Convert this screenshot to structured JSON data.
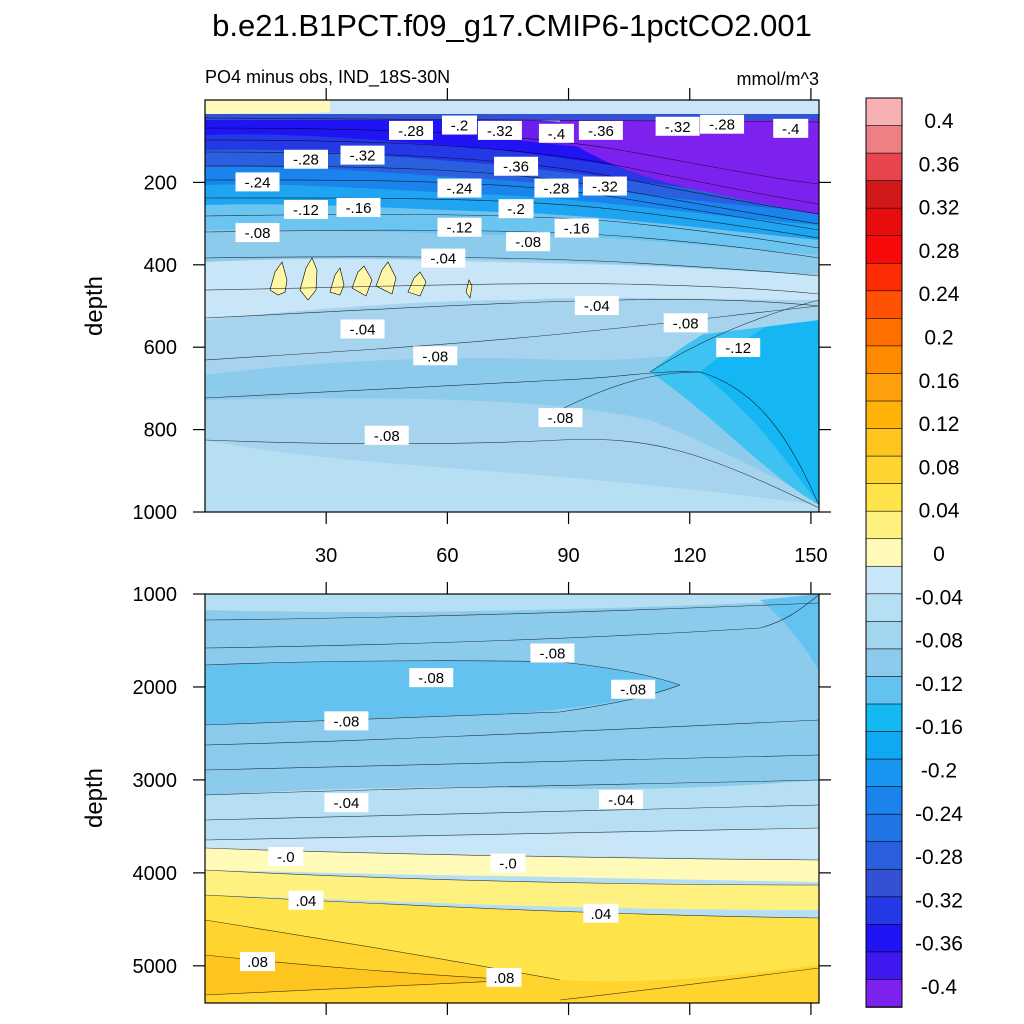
{
  "chart_data": {
    "type": "contour",
    "title": "b.e21.B1PCT.f09_g17.CMIP6-1pctCO2.001",
    "left_label": "PO4 minus obs, IND_18S-30N",
    "units": "mmol/m^3",
    "upper_panel": {
      "ylabel": "depth",
      "ylim": [
        0,
        1000
      ],
      "yticks": [
        "200",
        "400",
        "600",
        "800",
        "1000"
      ],
      "xlim": [
        0,
        152
      ],
      "xticks": [
        "30",
        "60",
        "90",
        "120",
        "150"
      ],
      "contour_labels": [
        {
          "text": "-.28",
          "x": 51,
          "y": 75
        },
        {
          "text": "-.2",
          "x": 63,
          "y": 62
        },
        {
          "text": "-.32",
          "x": 73,
          "y": 75
        },
        {
          "text": "-.4",
          "x": 87,
          "y": 82
        },
        {
          "text": "-.36",
          "x": 98,
          "y": 75
        },
        {
          "text": "-.32",
          "x": 117,
          "y": 65
        },
        {
          "text": "-.28",
          "x": 128,
          "y": 60
        },
        {
          "text": "-.4",
          "x": 145,
          "y": 70
        },
        {
          "text": "-.28",
          "x": 25,
          "y": 145
        },
        {
          "text": "-.32",
          "x": 39,
          "y": 135
        },
        {
          "text": "-.36",
          "x": 77,
          "y": 162
        },
        {
          "text": "-.24",
          "x": 13,
          "y": 200
        },
        {
          "text": "-.24",
          "x": 63,
          "y": 215
        },
        {
          "text": "-.28",
          "x": 87,
          "y": 215
        },
        {
          "text": "-.32",
          "x": 99,
          "y": 210
        },
        {
          "text": "-.12",
          "x": 25,
          "y": 267
        },
        {
          "text": "-.16",
          "x": 38,
          "y": 262
        },
        {
          "text": "-.2",
          "x": 77,
          "y": 265
        },
        {
          "text": "-.08",
          "x": 13,
          "y": 323
        },
        {
          "text": "-.12",
          "x": 63,
          "y": 310
        },
        {
          "text": "-.16",
          "x": 92,
          "y": 312
        },
        {
          "text": "-.08",
          "x": 80,
          "y": 345
        },
        {
          "text": "-.04",
          "x": 59,
          "y": 385
        },
        {
          "text": "-.04",
          "x": 97,
          "y": 500
        },
        {
          "text": "-.08",
          "x": 119,
          "y": 542
        },
        {
          "text": "-.04",
          "x": 39,
          "y": 557
        },
        {
          "text": "-.12",
          "x": 132,
          "y": 602
        },
        {
          "text": "-.08",
          "x": 57,
          "y": 622
        },
        {
          "text": "-.08",
          "x": 88,
          "y": 772
        },
        {
          "text": "-.08",
          "x": 45,
          "y": 815
        }
      ]
    },
    "lower_panel": {
      "ylabel": "depth",
      "ylim": [
        1000,
        5400
      ],
      "yticks": [
        "1000",
        "2000",
        "3000",
        "4000",
        "5000"
      ],
      "xlim": [
        0,
        152
      ],
      "contour_labels": [
        {
          "text": "-.08",
          "x": 86,
          "y": 1640
        },
        {
          "text": "-.08",
          "x": 56,
          "y": 1905
        },
        {
          "text": "-.08",
          "x": 106,
          "y": 2030
        },
        {
          "text": "-.08",
          "x": 35,
          "y": 2370
        },
        {
          "text": "-.04",
          "x": 35,
          "y": 3250
        },
        {
          "text": "-.04",
          "x": 103,
          "y": 3215
        },
        {
          "text": "-.0",
          "x": 20,
          "y": 3830
        },
        {
          "text": "-.0",
          "x": 75,
          "y": 3900
        },
        {
          "text": ".04",
          "x": 25,
          "y": 4300
        },
        {
          "text": ".04",
          "x": 98,
          "y": 4440
        },
        {
          "text": ".08",
          "x": 13,
          "y": 4960
        },
        {
          "text": ".08",
          "x": 74,
          "y": 5130
        }
      ]
    },
    "colorbar": {
      "levels": [
        "0.4",
        "0.36",
        "0.32",
        "0.28",
        "0.24",
        "0.2",
        "0.16",
        "0.12",
        "0.08",
        "0.04",
        "0",
        "-0.04",
        "-0.08",
        "-0.12",
        "-0.16",
        "-0.2",
        "-0.24",
        "-0.28",
        "-0.32",
        "-0.36",
        "-0.4"
      ],
      "colors": [
        "#f7b0b4",
        "#ee7f84",
        "#e6454e",
        "#d11919",
        "#e80e0e",
        "#f80a0a",
        "#ff2d05",
        "#ff5204",
        "#ff6f00",
        "#ff8a00",
        "#ffa10d",
        "#ffb208",
        "#ffc51f",
        "#ffd42f",
        "#ffe34b",
        "#fff17f",
        "#fffab8",
        "#c8e6f7",
        "#b5dff3",
        "#a4d5ef",
        "#8dcbed",
        "#64c2f0",
        "#14b9f2",
        "#11a8f2",
        "#1696f0",
        "#1b83ec",
        "#2174e6",
        "#2a60e0",
        "#3451d6",
        "#2438e6",
        "#2014f4",
        "#3e18ee",
        "#7d22ee"
      ]
    }
  }
}
